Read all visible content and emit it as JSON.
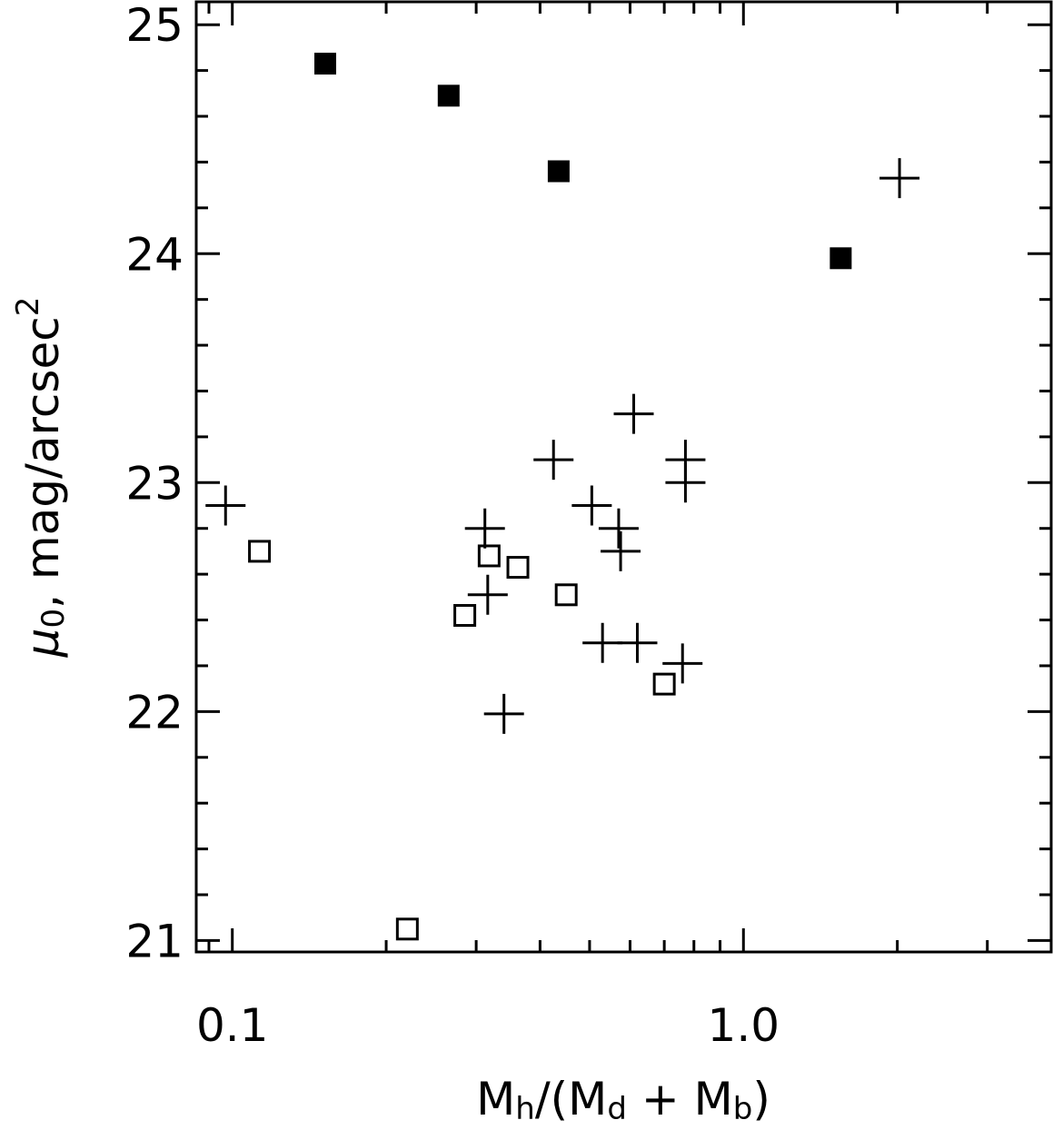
{
  "chart_data": {
    "type": "scatter",
    "title": "",
    "xlabel": "M_h/(M_d + M_b)",
    "xlabel_parts": {
      "M1": "M",
      "sub1": "h",
      "mid": "/(M",
      "sub2": "d",
      "plus": " + M",
      "sub3": "b",
      "end": ")"
    },
    "ylabel": "μ0, mag/arcsec2",
    "ylabel_parts": {
      "mu": "μ",
      "sub": "0",
      "text": ", mag/arcsec",
      "sup": "2"
    },
    "xscale": "log",
    "xlim": [
      0.085,
      4.0
    ],
    "ylim": [
      20.95,
      25.1
    ],
    "xticks": [
      {
        "value": 0.1,
        "label": "0.1"
      },
      {
        "value": 1.0,
        "label": "1.0"
      }
    ],
    "yticks": [
      {
        "value": 21,
        "label": "21"
      },
      {
        "value": 22,
        "label": "22"
      },
      {
        "value": 23,
        "label": "23"
      },
      {
        "value": 24,
        "label": "24"
      },
      {
        "value": 25,
        "label": "25"
      }
    ],
    "grid": false,
    "series": [
      {
        "marker": "filled-square",
        "color": "#000000",
        "points": [
          {
            "x": 0.152,
            "y": 24.83
          },
          {
            "x": 0.265,
            "y": 24.69
          },
          {
            "x": 0.435,
            "y": 24.36
          },
          {
            "x": 1.55,
            "y": 23.98
          }
        ]
      },
      {
        "marker": "open-square",
        "color": "#000000",
        "points": [
          {
            "x": 0.113,
            "y": 22.7
          },
          {
            "x": 0.22,
            "y": 21.05
          },
          {
            "x": 0.285,
            "y": 22.42
          },
          {
            "x": 0.318,
            "y": 22.68
          },
          {
            "x": 0.362,
            "y": 22.63
          },
          {
            "x": 0.45,
            "y": 22.51
          },
          {
            "x": 0.7,
            "y": 22.12
          }
        ]
      },
      {
        "marker": "plus",
        "color": "#000000",
        "points": [
          {
            "x": 0.097,
            "y": 22.9
          },
          {
            "x": 0.312,
            "y": 22.8
          },
          {
            "x": 0.316,
            "y": 22.51
          },
          {
            "x": 0.34,
            "y": 21.99
          },
          {
            "x": 0.425,
            "y": 23.1
          },
          {
            "x": 0.505,
            "y": 22.9
          },
          {
            "x": 0.53,
            "y": 22.3
          },
          {
            "x": 0.57,
            "y": 22.8
          },
          {
            "x": 0.575,
            "y": 22.7
          },
          {
            "x": 0.61,
            "y": 23.3
          },
          {
            "x": 0.62,
            "y": 22.3
          },
          {
            "x": 0.77,
            "y": 23.1
          },
          {
            "x": 0.77,
            "y": 23.0
          },
          {
            "x": 0.76,
            "y": 22.21
          },
          {
            "x": 2.02,
            "y": 24.33
          }
        ]
      }
    ]
  }
}
